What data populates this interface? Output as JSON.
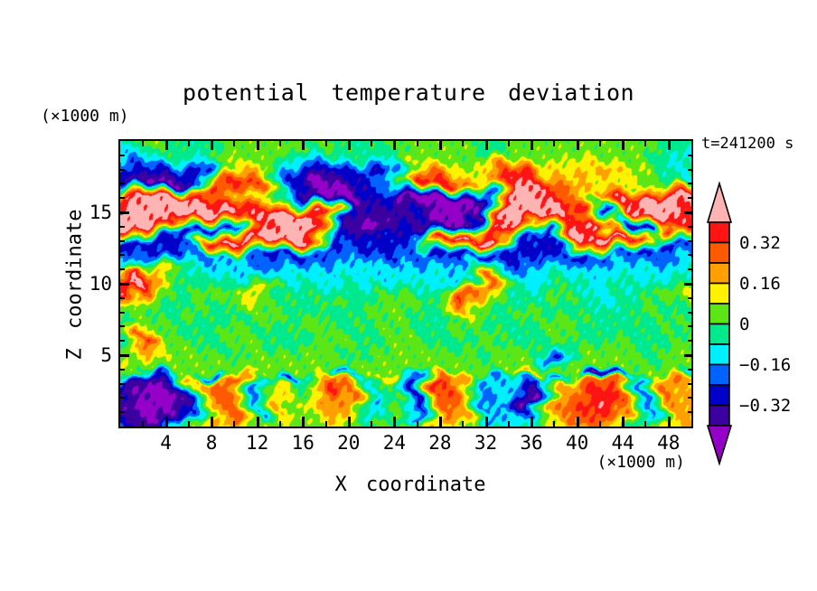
{
  "title": "potential temperature deviation",
  "time_label": "t=241200 s",
  "axes": {
    "x": {
      "title": "X coordinate",
      "unit": "(×1000 m)",
      "range": [
        0,
        50
      ],
      "major_ticks": [
        4,
        8,
        12,
        16,
        20,
        24,
        28,
        32,
        36,
        40,
        44,
        48
      ],
      "minor_tick_step": 2
    },
    "z": {
      "title": "Z coordinate",
      "unit": "(×1000 m)",
      "range": [
        0,
        20
      ],
      "major_ticks": [
        5,
        10,
        15
      ],
      "minor_tick_step": 1
    }
  },
  "colorbar": {
    "tick_labels": [
      "0.32",
      "0.16",
      "0",
      "−0.16",
      "−0.32"
    ]
  },
  "chart_data": {
    "type": "heatmap",
    "title": "potential temperature deviation",
    "xlabel": "X coordinate (×1000 m)",
    "ylabel": "Z coordinate (×1000 m)",
    "time_label": "t=241200 s",
    "x_range": [
      0,
      50
    ],
    "z_range": [
      0,
      20
    ],
    "contour_interval": 0.08,
    "contour_levels": [
      -0.4,
      -0.32,
      -0.24,
      -0.16,
      -0.08,
      0,
      0.08,
      0.16,
      0.24,
      0.32,
      0.4
    ],
    "colors_low_to_high": [
      "#9500C8",
      "#3D00A0",
      "#0000C8",
      "#0063FF",
      "#00EFFF",
      "#00E98C",
      "#5CE616",
      "#FFF200",
      "#FFA000",
      "#FF5A00",
      "#FF1414",
      "#FFB4B4"
    ],
    "x": [
      0,
      2,
      4,
      6,
      8,
      10,
      12,
      14,
      16,
      18,
      20,
      22,
      24,
      26,
      28,
      30,
      32,
      34,
      36,
      38,
      40,
      42,
      44,
      46,
      48,
      50
    ],
    "z": [
      20,
      19,
      18,
      17,
      16,
      15,
      14,
      13,
      12,
      11,
      10,
      9,
      8,
      7,
      6,
      5,
      4,
      3.6,
      3.2,
      2.5,
      1.5,
      0.5,
      0
    ],
    "values": [
      [
        -0.04,
        0.04,
        0.04,
        -0.04,
        -0.04,
        0.04,
        0.04,
        0.04,
        0.04,
        0.04,
        -0.04,
        -0.04,
        0.04,
        0.04,
        0.04,
        0.04,
        -0.04,
        0.04,
        0.04,
        0.04,
        0.04,
        0.04,
        0.04,
        0.04,
        -0.04,
        -0.04
      ],
      [
        -0.12,
        -0.12,
        -0.04,
        -0.04,
        -0.04,
        0.04,
        0.04,
        0.04,
        -0.04,
        -0.04,
        -0.04,
        -0.04,
        -0.04,
        0.04,
        0.04,
        0.04,
        -0.04,
        0.04,
        0.04,
        0.04,
        0.04,
        0.04,
        0.04,
        0.04,
        -0.04,
        -0.12
      ],
      [
        -0.2,
        -0.28,
        -0.28,
        -0.28,
        -0.2,
        0.12,
        0.2,
        -0.12,
        -0.2,
        -0.28,
        -0.28,
        -0.28,
        -0.12,
        0.2,
        0.28,
        0.04,
        0.12,
        0.28,
        0.36,
        0.12,
        0.12,
        0.2,
        0.12,
        0.04,
        -0.12,
        -0.04
      ],
      [
        -0.28,
        -0.36,
        -0.44,
        -0.36,
        0.28,
        0.36,
        0.28,
        -0.2,
        -0.36,
        -0.44,
        -0.36,
        -0.28,
        -0.12,
        0.36,
        0.36,
        0.2,
        0.12,
        0.36,
        0.44,
        0.28,
        0.2,
        0.12,
        0.12,
        0.04,
        -0.04,
        -0.12
      ],
      [
        0.36,
        0.44,
        0.44,
        0.44,
        0.36,
        0.2,
        0.12,
        0.04,
        -0.36,
        -0.44,
        -0.44,
        -0.28,
        -0.36,
        -0.44,
        -0.44,
        -0.44,
        -0.36,
        0.44,
        0.44,
        0.36,
        0.2,
        0.12,
        0.36,
        0.44,
        0.44,
        0.44
      ],
      [
        0.44,
        0.44,
        0.44,
        0.44,
        0.44,
        0.44,
        0.36,
        0.44,
        0.44,
        0.36,
        -0.28,
        -0.36,
        -0.36,
        -0.28,
        -0.44,
        -0.44,
        -0.36,
        0.44,
        0.44,
        0.44,
        0.36,
        -0.36,
        0.36,
        0.44,
        0.44,
        0.36
      ],
      [
        0.44,
        0.44,
        0.36,
        -0.28,
        -0.28,
        -0.2,
        0.36,
        0.44,
        0.44,
        0.36,
        -0.36,
        -0.44,
        -0.28,
        -0.36,
        -0.44,
        -0.36,
        0.36,
        0.44,
        0.36,
        -0.28,
        0.44,
        0.36,
        -0.36,
        -0.28,
        0.36,
        0.36
      ],
      [
        -0.28,
        -0.28,
        -0.28,
        -0.28,
        0.36,
        0.44,
        0.44,
        0.44,
        0.36,
        -0.28,
        -0.28,
        -0.28,
        -0.28,
        -0.2,
        0.36,
        0.44,
        0.44,
        -0.2,
        -0.28,
        -0.28,
        0.36,
        0.44,
        0.44,
        0.36,
        -0.28,
        -0.2
      ],
      [
        -0.2,
        -0.2,
        -0.28,
        -0.2,
        -0.2,
        -0.12,
        -0.2,
        -0.28,
        -0.28,
        -0.2,
        -0.2,
        -0.28,
        -0.2,
        -0.2,
        -0.28,
        -0.28,
        -0.28,
        -0.28,
        -0.28,
        -0.28,
        -0.28,
        -0.2,
        -0.2,
        -0.28,
        -0.2,
        -0.12
      ],
      [
        -0.12,
        0.36,
        0.12,
        -0.12,
        -0.12,
        -0.12,
        -0.2,
        -0.2,
        -0.12,
        -0.12,
        -0.12,
        -0.12,
        -0.12,
        -0.12,
        -0.12,
        -0.2,
        0.28,
        -0.12,
        -0.2,
        -0.12,
        -0.12,
        -0.12,
        -0.12,
        -0.12,
        -0.12,
        -0.04
      ],
      [
        0.36,
        0.44,
        0.12,
        -0.04,
        -0.04,
        -0.04,
        0.12,
        -0.12,
        -0.04,
        -0.12,
        -0.04,
        -0.12,
        -0.12,
        -0.04,
        -0.12,
        -0.12,
        0.28,
        -0.04,
        -0.12,
        -0.04,
        -0.04,
        -0.12,
        -0.04,
        -0.12,
        -0.04,
        0.12
      ],
      [
        0.36,
        0.04,
        -0.04,
        -0.04,
        0.04,
        0.04,
        0.12,
        -0.04,
        -0.04,
        0.04,
        -0.04,
        -0.04,
        0.04,
        0.04,
        -0.04,
        0.36,
        0.2,
        -0.04,
        -0.04,
        0.04,
        -0.04,
        -0.12,
        -0.04,
        -0.04,
        0.04,
        0.04
      ],
      [
        0.04,
        0.04,
        -0.04,
        0.04,
        -0.04,
        -0.04,
        0.04,
        0.04,
        -0.04,
        -0.04,
        -0.04,
        0.04,
        0.04,
        -0.04,
        -0.04,
        0.2,
        0.04,
        -0.04,
        0.04,
        -0.04,
        -0.04,
        -0.04,
        -0.04,
        0.04,
        -0.04,
        -0.04
      ],
      [
        -0.04,
        0.04,
        0.04,
        -0.04,
        -0.04,
        0.04,
        -0.04,
        -0.04,
        0.04,
        0.04,
        -0.04,
        -0.04,
        0.04,
        -0.04,
        -0.04,
        0.04,
        -0.04,
        -0.04,
        -0.04,
        0.04,
        0.04,
        -0.04,
        -0.04,
        -0.04,
        0.04,
        -0.04
      ],
      [
        -0.04,
        0.36,
        0.04,
        0.04,
        -0.04,
        0.04,
        0.04,
        -0.04,
        -0.04,
        0.04,
        0.04,
        -0.04,
        0.04,
        0.04,
        -0.04,
        -0.04,
        0.04,
        -0.04,
        -0.04,
        0.04,
        -0.04,
        -0.04,
        0.04,
        -0.04,
        -0.04,
        0.04
      ],
      [
        0.04,
        0.2,
        0.04,
        0.04,
        0.04,
        -0.04,
        0.04,
        0.04,
        0.04,
        0.04,
        -0.04,
        0.04,
        0.04,
        0.04,
        0.04,
        0.04,
        -0.04,
        0.04,
        0.04,
        -0.28,
        0.04,
        0.04,
        0.04,
        -0.04,
        0.04,
        0.04
      ],
      [
        0.04,
        0.04,
        0.04,
        0.04,
        0.04,
        0.04,
        0.04,
        0.04,
        0.04,
        0.04,
        0.04,
        0.04,
        0.04,
        0.04,
        0.04,
        0.04,
        0.04,
        0.04,
        0.04,
        0.04,
        0.04,
        0.04,
        0.04,
        0.04,
        0.04,
        0.04
      ],
      [
        -0.1,
        0.05,
        -0.28,
        0.12,
        -0.28,
        0.2,
        0.1,
        -0.28,
        -0.04,
        0.12,
        -0.28,
        0.04,
        0.2,
        -0.28,
        0.28,
        0.12,
        -0.28,
        0.04,
        0.2,
        -0.28,
        0.12,
        -0.44,
        -0.28,
        0.04,
        0.2,
        -0.28
      ],
      [
        -0.3,
        -0.38,
        -0.3,
        0.15,
        0.2,
        0.28,
        -0.1,
        0.12,
        -0.04,
        0.3,
        0.15,
        -0.12,
        0.04,
        -0.25,
        0.3,
        0.2,
        -0.15,
        -0.1,
        -0.25,
        0.1,
        0.2,
        0.3,
        0.25,
        -0.2,
        0.25,
        0.2
      ],
      [
        -0.36,
        -0.44,
        -0.44,
        -0.2,
        0.25,
        0.3,
        -0.2,
        0.15,
        0.0,
        0.35,
        0.25,
        -0.12,
        0.05,
        -0.3,
        0.36,
        0.28,
        -0.2,
        -0.12,
        -0.36,
        0.22,
        0.3,
        0.38,
        0.3,
        -0.25,
        0.25,
        0.15
      ],
      [
        -0.3,
        -0.44,
        -0.44,
        -0.3,
        0.2,
        0.3,
        -0.2,
        0.18,
        0.02,
        0.15,
        0.25,
        -0.15,
        0.04,
        -0.28,
        0.32,
        0.25,
        -0.2,
        -0.12,
        -0.44,
        0.2,
        0.3,
        0.38,
        0.25,
        -0.25,
        0.2,
        0.2
      ],
      [
        -0.25,
        -0.38,
        -0.4,
        -0.2,
        0.15,
        0.25,
        -0.15,
        0.15,
        0.04,
        0.1,
        0.2,
        -0.12,
        0.04,
        -0.15,
        0.25,
        0.15,
        -0.18,
        -0.1,
        -0.25,
        0.15,
        0.25,
        0.3,
        0.2,
        -0.18,
        0.15,
        0.2
      ],
      [
        -0.2,
        -0.3,
        -0.3,
        -0.05,
        0.1,
        0.15,
        0.04,
        0.08,
        0.0,
        0.06,
        0.12,
        -0.04,
        0.04,
        0.05,
        0.15,
        0.1,
        -0.05,
        -0.04,
        -0.1,
        0.1,
        0.15,
        0.2,
        0.1,
        -0.05,
        0.1,
        0.15
      ]
    ]
  }
}
